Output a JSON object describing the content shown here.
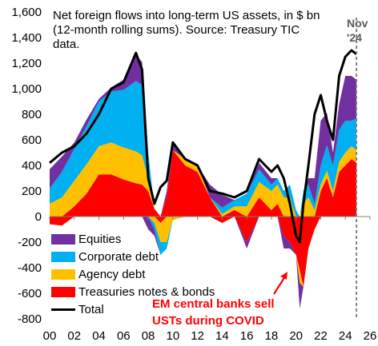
{
  "chart_data": {
    "type": "area",
    "title": "Net foreign flows into long-term US assets, in $ bn (12-month rolling sums). Source:  Treasury TIC data.",
    "xlabel": "",
    "ylabel": "",
    "stacking": "stacked",
    "xlim": [
      2000,
      2026
    ],
    "ylim": [
      -800,
      1600
    ],
    "grid": false,
    "legend": "bottom-left",
    "xtick_labels": [
      "00",
      "02",
      "04",
      "06",
      "08",
      "10",
      "12",
      "14",
      "16",
      "18",
      "20",
      "22",
      "24",
      "26"
    ],
    "ytick_labels": [
      "-800",
      "-600",
      "-400",
      "-200",
      "0",
      "200",
      "400",
      "600",
      "800",
      "1,000",
      "1,200",
      "1,400",
      "1,600"
    ],
    "x": [
      2000,
      2001,
      2002,
      2003,
      2004,
      2005,
      2006,
      2007,
      2007.5,
      2008,
      2008.5,
      2009,
      2009.5,
      2010,
      2011,
      2012,
      2013,
      2014,
      2015,
      2016,
      2017,
      2018,
      2018.5,
      2019,
      2019.5,
      2020,
      2020.3,
      2020.6,
      2021,
      2021.5,
      2022,
      2022.5,
      2023,
      2023.5,
      2024,
      2024.5,
      2024.9
    ],
    "series": [
      {
        "name": "Treasuries notes & bonds",
        "color": "#ff0000",
        "values": [
          -60,
          -70,
          80,
          180,
          330,
          330,
          290,
          260,
          250,
          200,
          60,
          -50,
          150,
          520,
          400,
          350,
          150,
          -50,
          50,
          -200,
          150,
          50,
          100,
          -150,
          -200,
          -300,
          -420,
          -550,
          -250,
          -100,
          200,
          300,
          150,
          350,
          400,
          450,
          420
        ]
      },
      {
        "name": "Agency debt",
        "color": "#ffc000",
        "values": [
          100,
          150,
          200,
          230,
          220,
          250,
          250,
          250,
          230,
          100,
          -50,
          -150,
          -200,
          -30,
          50,
          50,
          0,
          20,
          30,
          80,
          120,
          150,
          150,
          150,
          150,
          0,
          -100,
          100,
          150,
          50,
          50,
          60,
          50,
          80,
          100,
          100,
          100
        ]
      },
      {
        "name": "Corporate debt",
        "color": "#00b0f0",
        "values": [
          120,
          200,
          250,
          300,
          350,
          400,
          450,
          550,
          550,
          200,
          -50,
          -100,
          -50,
          0,
          0,
          0,
          0,
          50,
          50,
          100,
          100,
          50,
          50,
          50,
          100,
          50,
          0,
          100,
          100,
          50,
          150,
          200,
          200,
          250,
          250,
          200,
          250
        ]
      },
      {
        "name": "Equities",
        "color": "#7030a0",
        "values": [
          150,
          120,
          50,
          50,
          20,
          30,
          80,
          200,
          180,
          -100,
          -50,
          0,
          50,
          50,
          0,
          0,
          100,
          100,
          0,
          -50,
          50,
          50,
          0,
          -100,
          -50,
          0,
          -200,
          0,
          50,
          200,
          350,
          250,
          100,
          200,
          350,
          350,
          300
        ]
      },
      {
        "name": "Total",
        "color": "#000000",
        "values": [
          420,
          500,
          550,
          650,
          800,
          1000,
          1050,
          1280,
          1150,
          300,
          100,
          230,
          280,
          580,
          450,
          400,
          200,
          180,
          150,
          200,
          450,
          350,
          400,
          300,
          100,
          -150,
          -200,
          100,
          400,
          800,
          950,
          750,
          600,
          1100,
          1250,
          1300,
          1270
        ]
      }
    ],
    "vline": {
      "x": 2024.9,
      "label": "Nov '24"
    },
    "annotation": {
      "text": "EM central banks sell USTs during COVID",
      "x": 2020.5,
      "y": -450
    }
  },
  "marker_label": [
    "Nov",
    "'24"
  ],
  "annotation_lines": [
    "EM central banks sell",
    "USTs during COVID"
  ],
  "colors": {
    "annotation": "#ff0000",
    "marker": "#595959"
  }
}
